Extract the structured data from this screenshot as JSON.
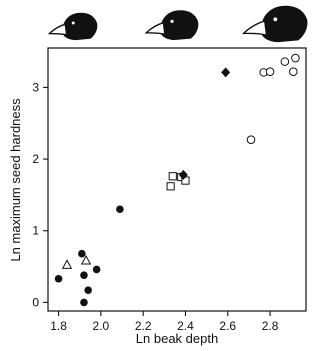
{
  "chart_data": {
    "type": "scatter",
    "title": "",
    "xlabel": "Ln beak depth",
    "ylabel": "Ln maximum seed hardness",
    "xlim": [
      1.75,
      2.97
    ],
    "ylim": [
      -0.12,
      3.55
    ],
    "x_ticks": [
      "1.8",
      "2.0",
      "2.2",
      "2.4",
      "2.6",
      "2.8"
    ],
    "y_ticks": [
      "0",
      "1",
      "2",
      "3"
    ],
    "grid": false,
    "legend": "none",
    "decorations": [
      "small-beak-finch-head",
      "medium-beak-finch-head",
      "large-beak-finch-head"
    ],
    "series": [
      {
        "marker": "filled-circle",
        "points": [
          [
            1.8,
            0.33
          ],
          [
            1.91,
            0.68
          ],
          [
            1.92,
            0.38
          ],
          [
            1.92,
            0.0
          ],
          [
            1.94,
            0.17
          ],
          [
            1.98,
            0.46
          ],
          [
            2.09,
            1.3
          ]
        ]
      },
      {
        "marker": "open-triangle",
        "points": [
          [
            1.84,
            0.52
          ],
          [
            1.93,
            0.58
          ]
        ]
      },
      {
        "marker": "open-square",
        "points": [
          [
            2.33,
            1.62
          ],
          [
            2.34,
            1.76
          ],
          [
            2.38,
            1.75
          ],
          [
            2.4,
            1.7
          ]
        ]
      },
      {
        "marker": "filled-diamond",
        "points": [
          [
            2.39,
            1.78
          ],
          [
            2.59,
            3.21
          ]
        ]
      },
      {
        "marker": "open-circle",
        "points": [
          [
            2.71,
            2.27
          ],
          [
            2.77,
            3.21
          ],
          [
            2.8,
            3.22
          ],
          [
            2.87,
            3.36
          ],
          [
            2.91,
            3.22
          ],
          [
            2.92,
            3.41
          ]
        ]
      }
    ]
  }
}
